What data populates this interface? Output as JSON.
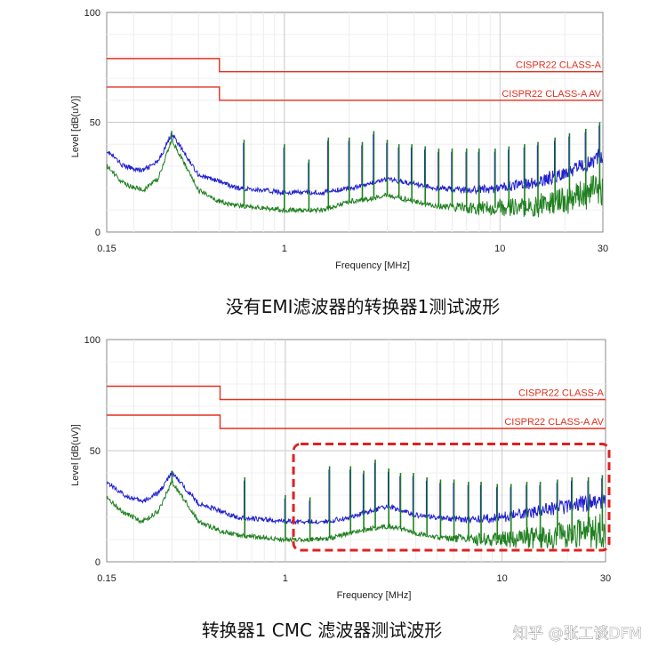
{
  "chart_data": [
    {
      "type": "line",
      "caption": "没有EMI滤波器的转换器1测试波形",
      "xlabel": "Frequency [MHz]",
      "ylabel": "Level [dB(uV)]",
      "x_scale": "log",
      "xlim": [
        0.15,
        30
      ],
      "ylim": [
        0,
        100
      ],
      "x_ticks": [
        {
          "value": 0.15,
          "label": "0.15"
        },
        {
          "value": 1,
          "label": "1"
        },
        {
          "value": 10,
          "label": "10"
        },
        {
          "value": 30,
          "label": "30"
        }
      ],
      "y_ticks": [
        {
          "value": 0,
          "label": "0"
        },
        {
          "value": 50,
          "label": "50"
        },
        {
          "value": 100,
          "label": "100"
        }
      ],
      "grid": true,
      "limit_lines": [
        {
          "label": "CISPR22 CLASS-A",
          "color": "#e03020",
          "segments": [
            {
              "x": [
                0.15,
                0.5
              ],
              "y": 79
            },
            {
              "x": [
                0.5,
                30
              ],
              "y": 73
            }
          ]
        },
        {
          "label": "CISPR22 CLASS-A AV",
          "color": "#e03020",
          "segments": [
            {
              "x": [
                0.15,
                0.5
              ],
              "y": 66
            },
            {
              "x": [
                0.5,
                30
              ],
              "y": 60
            }
          ]
        }
      ],
      "series": [
        {
          "color": "#2020d0",
          "x": [
            0.15,
            0.18,
            0.22,
            0.26,
            0.3,
            0.4,
            0.5,
            0.6,
            0.8,
            1,
            1.5,
            2,
            2.5,
            3,
            4,
            5,
            7,
            10,
            15,
            20,
            30
          ],
          "y": [
            37,
            30,
            28,
            32,
            45,
            26,
            23,
            20,
            19,
            18,
            18,
            20,
            22,
            24,
            22,
            20,
            19,
            20,
            23,
            27,
            35
          ]
        },
        {
          "color": "#208020",
          "x": [
            0.15,
            0.18,
            0.22,
            0.26,
            0.3,
            0.4,
            0.5,
            0.6,
            0.8,
            1,
            1.5,
            2,
            2.5,
            3,
            4,
            5,
            7,
            10,
            15,
            20,
            30
          ],
          "y": [
            30,
            22,
            19,
            24,
            42,
            19,
            14,
            12,
            11,
            10,
            10,
            14,
            15,
            17,
            14,
            12,
            11,
            11,
            12,
            14,
            20
          ]
        }
      ],
      "spikes": [
        {
          "x": 0.3,
          "y": 46
        },
        {
          "x": 0.65,
          "y": 42
        },
        {
          "x": 1.0,
          "y": 40
        },
        {
          "x": 1.3,
          "y": 33
        },
        {
          "x": 1.6,
          "y": 43
        },
        {
          "x": 2.0,
          "y": 43
        },
        {
          "x": 2.3,
          "y": 41
        },
        {
          "x": 2.6,
          "y": 46
        },
        {
          "x": 3.0,
          "y": 42
        },
        {
          "x": 3.4,
          "y": 40
        },
        {
          "x": 3.9,
          "y": 40
        },
        {
          "x": 4.5,
          "y": 39
        },
        {
          "x": 5.2,
          "y": 38
        },
        {
          "x": 6.0,
          "y": 38
        },
        {
          "x": 7.0,
          "y": 38
        },
        {
          "x": 8.0,
          "y": 38
        },
        {
          "x": 9.5,
          "y": 38
        },
        {
          "x": 11,
          "y": 39
        },
        {
          "x": 13,
          "y": 40
        },
        {
          "x": 15,
          "y": 41
        },
        {
          "x": 18,
          "y": 43
        },
        {
          "x": 21,
          "y": 45
        },
        {
          "x": 25,
          "y": 47
        },
        {
          "x": 29,
          "y": 50
        }
      ]
    },
    {
      "type": "line",
      "caption": "转换器1 CMC 滤波器测试波形",
      "xlabel": "Frequency [MHz]",
      "ylabel": "Level [dB(uV)]",
      "x_scale": "log",
      "xlim": [
        0.15,
        30
      ],
      "ylim": [
        0,
        100
      ],
      "x_ticks": [
        {
          "value": 0.15,
          "label": "0.15"
        },
        {
          "value": 1,
          "label": "1"
        },
        {
          "value": 10,
          "label": "10"
        },
        {
          "value": 30,
          "label": "30"
        }
      ],
      "y_ticks": [
        {
          "value": 0,
          "label": "0"
        },
        {
          "value": 50,
          "label": "50"
        },
        {
          "value": 100,
          "label": "100"
        }
      ],
      "grid": true,
      "limit_lines": [
        {
          "label": "CISPR22 CLASS-A",
          "color": "#e03020",
          "segments": [
            {
              "x": [
                0.15,
                0.5
              ],
              "y": 79
            },
            {
              "x": [
                0.5,
                30
              ],
              "y": 73
            }
          ]
        },
        {
          "label": "CISPR22 CLASS-A AV",
          "color": "#e03020",
          "segments": [
            {
              "x": [
                0.15,
                0.5
              ],
              "y": 66
            },
            {
              "x": [
                0.5,
                30
              ],
              "y": 60
            }
          ]
        }
      ],
      "series": [
        {
          "color": "#2020d0",
          "x": [
            0.15,
            0.18,
            0.22,
            0.26,
            0.3,
            0.4,
            0.5,
            0.6,
            0.8,
            1,
            1.5,
            2,
            2.5,
            3,
            4,
            5,
            7,
            10,
            15,
            20,
            30
          ],
          "y": [
            36,
            30,
            27,
            31,
            40,
            26,
            23,
            20,
            19,
            18,
            18,
            20,
            23,
            25,
            21,
            20,
            19,
            20,
            23,
            25,
            28
          ]
        },
        {
          "color": "#208020",
          "x": [
            0.15,
            0.18,
            0.22,
            0.26,
            0.3,
            0.4,
            0.5,
            0.6,
            0.8,
            1,
            1.5,
            2,
            2.5,
            3,
            4,
            5,
            7,
            10,
            15,
            20,
            30
          ],
          "y": [
            29,
            22,
            18,
            23,
            36,
            18,
            14,
            12,
            11,
            10,
            10,
            13,
            15,
            16,
            13,
            11,
            10,
            10,
            11,
            12,
            14
          ]
        }
      ],
      "spikes": [
        {
          "x": 0.3,
          "y": 41
        },
        {
          "x": 0.65,
          "y": 38
        },
        {
          "x": 1.0,
          "y": 30
        },
        {
          "x": 1.3,
          "y": 29
        },
        {
          "x": 1.6,
          "y": 43
        },
        {
          "x": 2.0,
          "y": 43
        },
        {
          "x": 2.3,
          "y": 41
        },
        {
          "x": 2.6,
          "y": 46
        },
        {
          "x": 3.0,
          "y": 42
        },
        {
          "x": 3.4,
          "y": 40
        },
        {
          "x": 3.9,
          "y": 40
        },
        {
          "x": 4.5,
          "y": 38
        },
        {
          "x": 5.2,
          "y": 37
        },
        {
          "x": 6.0,
          "y": 37
        },
        {
          "x": 7.0,
          "y": 36
        },
        {
          "x": 8.0,
          "y": 36
        },
        {
          "x": 9.5,
          "y": 35
        },
        {
          "x": 11,
          "y": 35
        },
        {
          "x": 13,
          "y": 36
        },
        {
          "x": 15,
          "y": 36
        },
        {
          "x": 18,
          "y": 37
        },
        {
          "x": 21,
          "y": 38
        },
        {
          "x": 25,
          "y": 38
        },
        {
          "x": 29,
          "y": 39
        }
      ],
      "highlight": {
        "x": [
          1.05,
          30
        ],
        "y": [
          10,
          53
        ],
        "color": "#e02020",
        "style": "dashed"
      }
    }
  ],
  "watermark": "知乎 @张工谈DFM"
}
